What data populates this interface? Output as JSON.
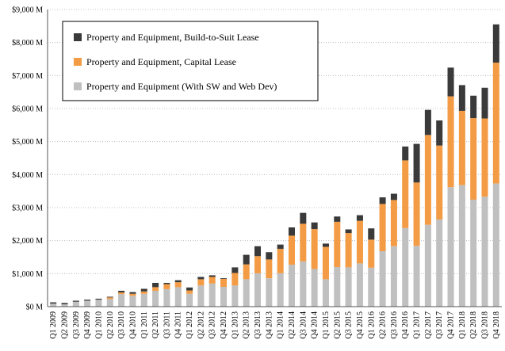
{
  "chart_data": {
    "type": "bar",
    "stacked": true,
    "title": "",
    "xlabel": "",
    "ylabel": "",
    "ylim": [
      0,
      9000
    ],
    "yticks": [
      0,
      1000,
      2000,
      3000,
      4000,
      5000,
      6000,
      7000,
      8000,
      9000
    ],
    "ytick_labels": [
      "$0 M",
      "$1,000 M",
      "$2,000 M",
      "$3,000 M",
      "$4,000 M",
      "$5,000 M",
      "$6,000 M",
      "$7,000 M",
      "$8,000 M",
      "$9,000 M"
    ],
    "grid": "horizontal dotted",
    "legend_position": "top-left",
    "categories": [
      "Q1 2009",
      "Q2 2009",
      "Q3 2009",
      "Q4 2009",
      "Q1 2010",
      "Q2 2010",
      "Q3 2010",
      "Q4 2010",
      "Q1 2011",
      "Q2 2011",
      "Q3 2011",
      "Q4 2011",
      "Q1 2012",
      "Q2 2012",
      "Q3 2012",
      "Q4 2012",
      "Q1 2013",
      "Q2 2013",
      "Q3 2013",
      "Q4 2013",
      "Q1 2014",
      "Q2 2014",
      "Q3 2014",
      "Q4 2014",
      "Q1 2015",
      "Q2 2015",
      "Q3 2015",
      "Q4 2015",
      "Q1 2016",
      "Q2 2016",
      "Q3 2016",
      "Q4 2016",
      "Q1 2017",
      "Q2 2017",
      "Q3 2017",
      "Q4 2017",
      "Q1 2018",
      "Q2 2018",
      "Q3 2018",
      "Q4 2018"
    ],
    "series": [
      {
        "name": "Property and Equipment (With SW and Web Dev)",
        "color": "#c0c0c0",
        "values": [
          90,
          70,
          150,
          180,
          210,
          230,
          380,
          330,
          390,
          480,
          530,
          590,
          390,
          640,
          700,
          600,
          640,
          830,
          1010,
          860,
          1010,
          1270,
          1370,
          1140,
          830,
          1200,
          1190,
          1310,
          1180,
          1680,
          1830,
          2380,
          1840,
          2480,
          2640,
          3620,
          3680,
          3240,
          3330,
          3730
        ]
      },
      {
        "name": "Property and Equipment, Capital Lease",
        "color": "#f39c45",
        "values": [
          0,
          0,
          0,
          0,
          0,
          50,
          50,
          60,
          70,
          110,
          150,
          150,
          100,
          190,
          200,
          240,
          380,
          450,
          520,
          570,
          740,
          880,
          1140,
          1210,
          980,
          1370,
          1040,
          1290,
          850,
          1430,
          1400,
          2050,
          1920,
          2720,
          2240,
          2750,
          2250,
          2470,
          2370,
          3660
        ]
      },
      {
        "name": "Property and Equipment, Build-to-Suit Lease",
        "color": "#3a3a3a",
        "values": [
          40,
          40,
          30,
          30,
          30,
          20,
          50,
          50,
          80,
          130,
          40,
          60,
          90,
          70,
          50,
          20,
          170,
          290,
          300,
          220,
          130,
          250,
          330,
          200,
          100,
          160,
          110,
          170,
          340,
          200,
          190,
          420,
          1170,
          760,
          760,
          870,
          780,
          680,
          930,
          1160
        ]
      }
    ]
  }
}
